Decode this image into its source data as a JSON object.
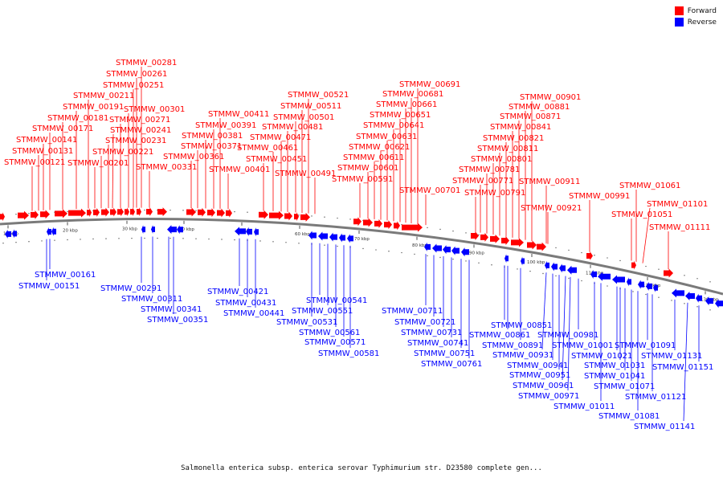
{
  "legend": [
    {
      "label": "Forward",
      "color": "#ff0000"
    },
    {
      "label": "Reverse",
      "color": "#0000ff"
    }
  ],
  "caption": "Salmonella enterica subsp. enterica serovar Typhimurium str. D23580 complete gen...",
  "scale_ticks": [
    "10 kbp",
    "20 kbp",
    "30 kbp",
    "40 kbp",
    "50 kbp",
    "60 kbp",
    "70 kbp",
    "80 kbp",
    "90 kbp",
    "100 kbp",
    "110 kbp",
    "120 kbp",
    "130 kbp"
  ],
  "forward_labels": [
    "STMMW_00121",
    "STMMW_00131",
    "STMMW_00141",
    "STMMW_00171",
    "STMMW_00181",
    "STMMW_00191",
    "STMMW_00211",
    "STMMW_00201",
    "STMMW_00221",
    "STMMW_00231",
    "STMMW_00241",
    "STMMW_00271",
    "STMMW_00301",
    "STMMW_00251",
    "STMMW_00261",
    "STMMW_00281",
    "STMMW_00331",
    "STMMW_00361",
    "STMMW_00371",
    "STMMW_00381",
    "STMMW_00391",
    "STMMW_00411",
    "STMMW_00401",
    "STMMW_00451",
    "STMMW_00461",
    "STMMW_00471",
    "STMMW_00481",
    "STMMW_00501",
    "STMMW_00511",
    "STMMW_00521",
    "STMMW_00491",
    "STMMW_00591",
    "STMMW_00601",
    "STMMW_00611",
    "STMMW_00621",
    "STMMW_00631",
    "STMMW_00641",
    "STMMW_00651",
    "STMMW_00661",
    "STMMW_00681",
    "STMMW_00691",
    "STMMW_00701",
    "STMMW_00791",
    "STMMW_00771",
    "STMMW_00781",
    "STMMW_00801",
    "STMMW_00811",
    "STMMW_00821",
    "STMMW_00841",
    "STMMW_00871",
    "STMMW_00881",
    "STMMW_00901",
    "STMMW_00911",
    "STMMW_00921",
    "STMMW_00991",
    "STMMW_01051",
    "STMMW_01061",
    "STMMW_01101",
    "STMMW_01111"
  ],
  "reverse_labels": [
    "STMMW_00161",
    "STMMW_00151",
    "STMMW_00291",
    "STMMW_00311",
    "STMMW_00341",
    "STMMW_00351",
    "STMMW_00421",
    "STMMW_00431",
    "STMMW_00441",
    "STMMW_00541",
    "STMMW_00551",
    "STMMW_00531",
    "STMMW_00561",
    "STMMW_00571",
    "STMMW_00581",
    "STMMW_00711",
    "STMMW_00721",
    "STMMW_00731",
    "STMMW_00741",
    "STMMW_00751",
    "STMMW_00761",
    "STMMW_00851",
    "STMMW_00861",
    "STMMW_00891",
    "STMMW_00931",
    "STMMW_00941",
    "STMMW_00951",
    "STMMW_00961",
    "STMMW_00971",
    "STMMW_00981",
    "STMMW_01001",
    "STMMW_01011",
    "STMMW_01021",
    "STMMW_01031",
    "STMMW_01041",
    "STMMW_01071",
    "STMMW_01081",
    "STMMW_01091",
    "STMMW_01121",
    "STMMW_01131",
    "STMMW_01141",
    "STMMW_01151"
  ]
}
